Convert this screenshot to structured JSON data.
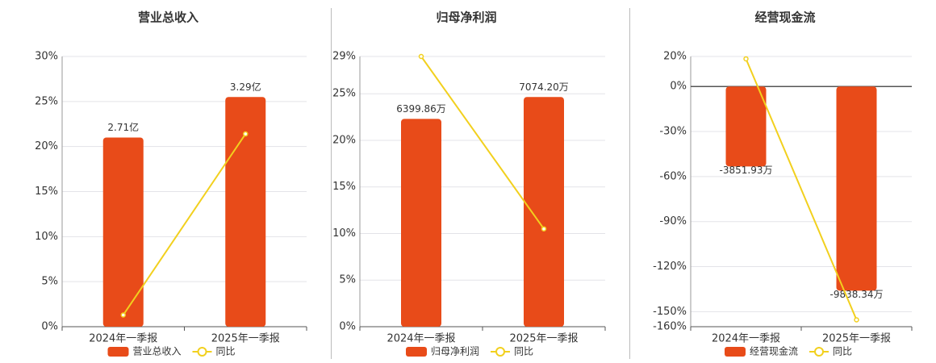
{
  "chart_data": [
    {
      "type": "combo",
      "title": "营业总收入",
      "categories": [
        "2024年一季报",
        "2025年一季报"
      ],
      "series": [
        {
          "name": "营业总收入",
          "type": "bar",
          "color": "#e84b19",
          "values": [
            2.71,
            3.29
          ],
          "value_labels": [
            "2.71亿",
            "3.29亿"
          ]
        },
        {
          "name": "同比",
          "type": "line",
          "color": "#f2d01e",
          "values": [
            1.3,
            21.4
          ]
        }
      ],
      "ylim": [
        0,
        30
      ],
      "yticks": [
        {
          "value": 0,
          "label": "0%"
        },
        {
          "value": 5,
          "label": "5%"
        },
        {
          "value": 10,
          "label": "10%"
        },
        {
          "value": 15,
          "label": "15%"
        },
        {
          "value": 20,
          "label": "20%"
        },
        {
          "value": 25,
          "label": "25%"
        },
        {
          "value": 30,
          "label": "30%"
        }
      ],
      "grid": true
    },
    {
      "type": "combo",
      "title": "归母净利润",
      "categories": [
        "2024年一季报",
        "2025年一季报"
      ],
      "series": [
        {
          "name": "归母净利润",
          "type": "bar",
          "color": "#e84b19",
          "values": [
            6399.86,
            7074.2
          ],
          "value_labels": [
            "6399.86万",
            "7074.20万"
          ]
        },
        {
          "name": "同比",
          "type": "line",
          "color": "#f2d01e",
          "values": [
            29,
            10.5
          ]
        }
      ],
      "ylim": [
        0,
        29
      ],
      "yticks": [
        {
          "value": 0,
          "label": "0%"
        },
        {
          "value": 5,
          "label": "5%"
        },
        {
          "value": 10,
          "label": "10%"
        },
        {
          "value": 15,
          "label": "15%"
        },
        {
          "value": 20,
          "label": "20%"
        },
        {
          "value": 25,
          "label": "25%"
        },
        {
          "value": 29,
          "label": "29%"
        }
      ],
      "grid": true
    },
    {
      "type": "combo",
      "title": "经营现金流",
      "categories": [
        "2024年一季报",
        "2025年一季报"
      ],
      "series": [
        {
          "name": "经营现金流",
          "type": "bar",
          "color": "#e84b19",
          "values": [
            -3851.93,
            -9838.34
          ],
          "value_labels": [
            "-3851.93万",
            "-9838.34万"
          ]
        },
        {
          "name": "同比",
          "type": "line",
          "color": "#f2d01e",
          "values": [
            18.4,
            -155.4
          ]
        }
      ],
      "ylim": [
        -160,
        20
      ],
      "yticks": [
        {
          "value": 20,
          "label": "20%"
        },
        {
          "value": 0,
          "label": "0%"
        },
        {
          "value": -30,
          "label": "-30%"
        },
        {
          "value": -60,
          "label": "-60%"
        },
        {
          "value": -90,
          "label": "-90%"
        },
        {
          "value": -120,
          "label": "-120%"
        },
        {
          "value": -150,
          "label": "-150%"
        },
        {
          "value": -160,
          "label": "-160%"
        }
      ],
      "grid": true
    }
  ]
}
